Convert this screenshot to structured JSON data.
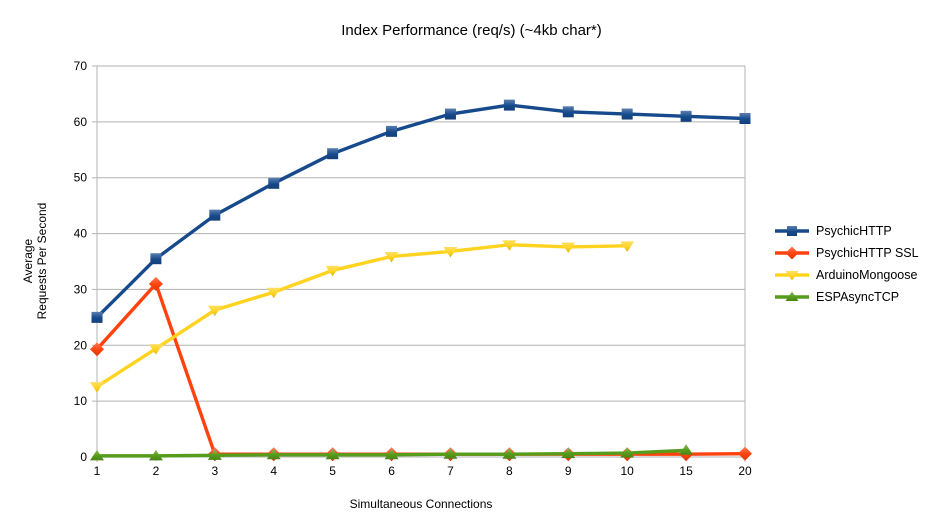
{
  "page": {
    "background_color": "#ffffff",
    "text_color": "#000000"
  },
  "chart_data": {
    "type": "line",
    "title": "Index Performance (req/s) (~4kb char*)",
    "xlabel": "Simultaneous Connections",
    "ylabel": "Average\nRequests Per Second",
    "categories": [
      "1",
      "2",
      "3",
      "4",
      "5",
      "6",
      "7",
      "8",
      "9",
      "10",
      "15",
      "20"
    ],
    "ylim": [
      0,
      70
    ],
    "yticks": [
      0,
      10,
      20,
      30,
      40,
      50,
      60,
      70
    ],
    "grid": "horizontal",
    "grid_color": "#b3b3b3",
    "axis_color": "#b3b3b3",
    "legend_position": "right",
    "series": [
      {
        "name": "PsychicHTTP",
        "color": "#164a8c",
        "marker": "square",
        "values": [
          25,
          35.5,
          43.3,
          49,
          54.3,
          58.3,
          61.4,
          63,
          61.8,
          61.4,
          61,
          60.6
        ]
      },
      {
        "name": "PsychicHTTP SSL",
        "color": "#ff420e",
        "marker": "diamond",
        "values": [
          19.3,
          31,
          0.5,
          0.5,
          0.5,
          0.5,
          0.5,
          0.5,
          0.5,
          0.5,
          0.5,
          0.6
        ]
      },
      {
        "name": "ArduinoMongoose",
        "color": "#ffd320",
        "marker": "triangle-down",
        "values": [
          12.6,
          19.4,
          26.3,
          29.5,
          33.4,
          35.9,
          36.8,
          38,
          37.6,
          37.8,
          null,
          null
        ]
      },
      {
        "name": "ESPAsyncTCP",
        "color": "#579d1c",
        "marker": "triangle-up",
        "values": [
          0.2,
          0.2,
          0.3,
          0.4,
          0.4,
          0.4,
          0.5,
          0.5,
          0.6,
          0.7,
          1.2,
          null
        ]
      }
    ]
  }
}
